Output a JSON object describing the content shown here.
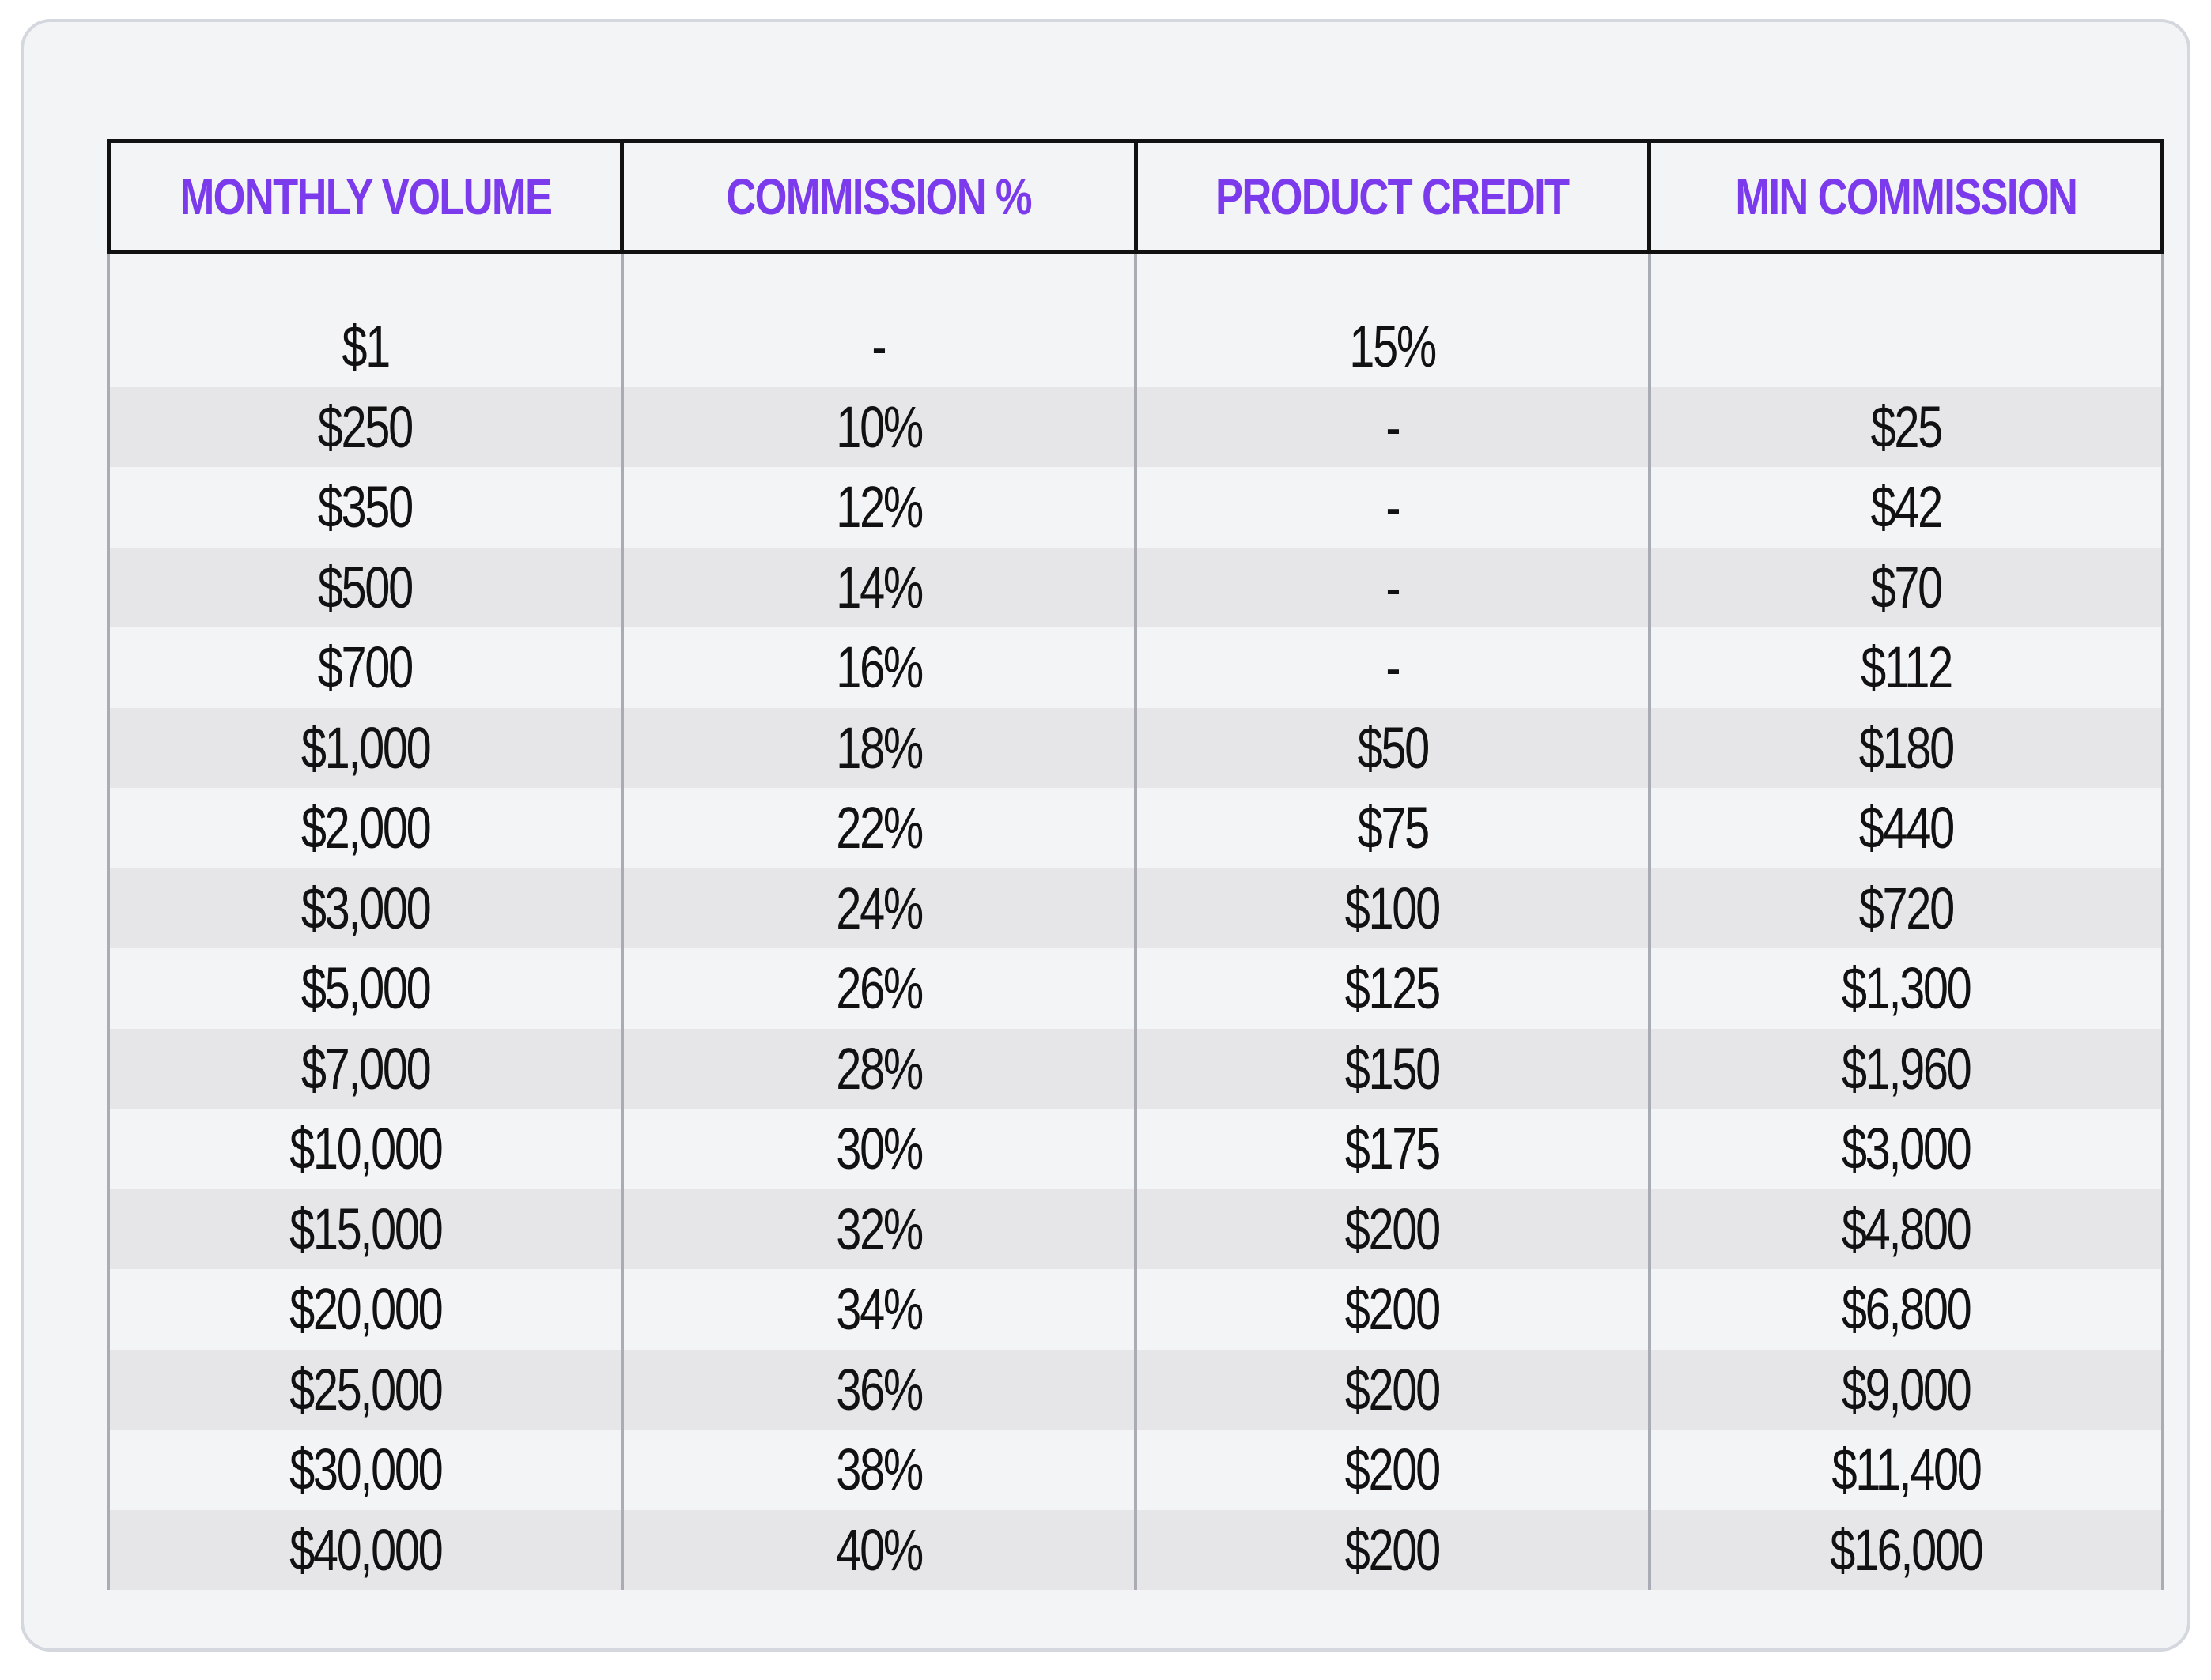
{
  "table": {
    "columns": [
      "MONTHLY VOLUME",
      "COMMISSION %",
      "PRODUCT CREDIT",
      "MIN COMMISSION"
    ],
    "rows": [
      [
        "$1",
        "-",
        "15%",
        ""
      ],
      [
        "$250",
        "10%",
        "-",
        "$25"
      ],
      [
        "$350",
        "12%",
        "-",
        "$42"
      ],
      [
        "$500",
        "14%",
        "-",
        "$70"
      ],
      [
        "$700",
        "16%",
        "-",
        "$112"
      ],
      [
        "$1,000",
        "18%",
        "$50",
        "$180"
      ],
      [
        "$2,000",
        "22%",
        "$75",
        "$440"
      ],
      [
        "$3,000",
        "24%",
        "$100",
        "$720"
      ],
      [
        "$5,000",
        "26%",
        "$125",
        "$1,300"
      ],
      [
        "$7,000",
        "28%",
        "$150",
        "$1,960"
      ],
      [
        "$10,000",
        "30%",
        "$175",
        "$3,000"
      ],
      [
        "$15,000",
        "32%",
        "$200",
        "$4,800"
      ],
      [
        "$20,000",
        "34%",
        "$200",
        "$6,800"
      ],
      [
        "$25,000",
        "36%",
        "$200",
        "$9,000"
      ],
      [
        "$30,000",
        "38%",
        "$200",
        "$11,400"
      ],
      [
        "$40,000",
        "40%",
        "$200",
        "$16,000"
      ]
    ]
  },
  "colors": {
    "header_text": "#7c3aed",
    "card_background": "#f3f4f6",
    "alt_row": "#e6e6e8",
    "body_text": "#111111"
  }
}
